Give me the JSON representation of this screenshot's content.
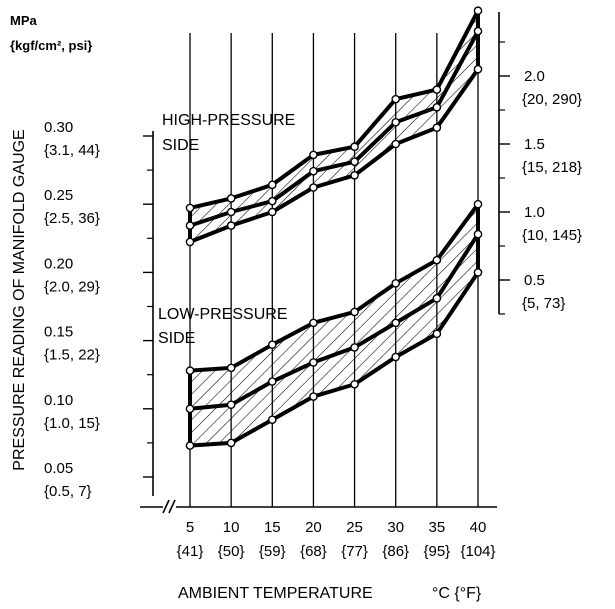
{
  "chart_data": {
    "type": "area",
    "xlabel": "AMBIENT TEMPERATURE",
    "xlabel_unit": "°C {°F}",
    "ylabel": "PRESSURE READING OF MANIFOLD GAUGE",
    "unit_label": "MPa",
    "unit_label_sub": "{kgf/cm², psi}",
    "x_ticks": [
      {
        "c": "5",
        "f": "{41}"
      },
      {
        "c": "10",
        "f": "{50}"
      },
      {
        "c": "15",
        "f": "{59}"
      },
      {
        "c": "20",
        "f": "{68}"
      },
      {
        "c": "25",
        "f": "{77}"
      },
      {
        "c": "30",
        "f": "{86}"
      },
      {
        "c": "35",
        "f": "{95}"
      },
      {
        "c": "40",
        "f": "{104}"
      }
    ],
    "left_axis": {
      "ylim": [
        0.03,
        0.33
      ],
      "ticks": [
        {
          "v": 0.3,
          "a": "0.30",
          "b": "{3.1, 44}"
        },
        {
          "v": 0.25,
          "a": "0.25",
          "b": "{2.5, 36}"
        },
        {
          "v": 0.2,
          "a": "0.20",
          "b": "{2.0, 29}"
        },
        {
          "v": 0.15,
          "a": "0.15",
          "b": "{1.5, 22}"
        },
        {
          "v": 0.1,
          "a": "0.10",
          "b": "{1.0, 15}"
        },
        {
          "v": 0.05,
          "a": "0.05",
          "b": "{0.5, 7}"
        }
      ]
    },
    "right_axis": {
      "ylim": [
        0.3,
        2.6
      ],
      "ticks": [
        {
          "v": 2.0,
          "a": "2.0",
          "b": "{20, 290}"
        },
        {
          "v": 1.5,
          "a": "1.5",
          "b": "{15, 218}"
        },
        {
          "v": 1.0,
          "a": "1.0",
          "b": "{10, 145}"
        },
        {
          "v": 0.5,
          "a": "0.5",
          "b": "{5, 73}"
        }
      ]
    },
    "series": [
      {
        "name": "HIGH-PRESSURE",
        "name_line2": "SIDE",
        "axis": "right",
        "x": [
          5,
          10,
          15,
          20,
          25,
          30,
          35,
          40
        ],
        "upper": [
          1.03,
          1.1,
          1.2,
          1.42,
          1.48,
          1.83,
          1.9,
          2.48
        ],
        "middle": [
          0.9,
          1.0,
          1.08,
          1.3,
          1.37,
          1.66,
          1.77,
          2.33
        ],
        "lower": [
          0.78,
          0.9,
          1.0,
          1.18,
          1.27,
          1.5,
          1.62,
          2.05
        ]
      },
      {
        "name": "LOW-PRESSURE",
        "name_line2": "SIDE",
        "axis": "left",
        "x": [
          5,
          10,
          15,
          20,
          25,
          30,
          35,
          40
        ],
        "upper": [
          0.128,
          0.13,
          0.147,
          0.163,
          0.171,
          0.192,
          0.209,
          0.25
        ],
        "middle": [
          0.1,
          0.103,
          0.12,
          0.134,
          0.145,
          0.163,
          0.181,
          0.228
        ],
        "lower": [
          0.073,
          0.075,
          0.092,
          0.109,
          0.118,
          0.138,
          0.155,
          0.2
        ]
      }
    ],
    "colors": {
      "ink": "#000000",
      "background": "#ffffff"
    }
  }
}
